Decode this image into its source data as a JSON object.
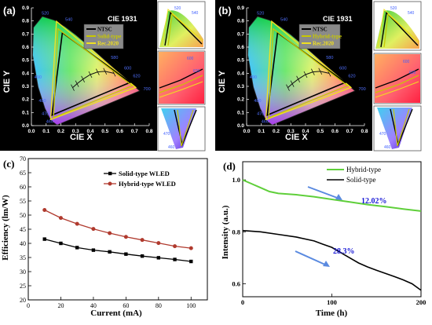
{
  "panels": {
    "a": {
      "label": "(a)",
      "title": "CIE 1931",
      "xlabel": "CIE X",
      "ylabel": "CIE Y",
      "legend": [
        "NTSC",
        "Solid-type",
        "Rec.2020"
      ],
      "legend_colors": [
        "#000000",
        "#c8c800",
        "#f0e020"
      ],
      "x_ticks": [
        "0.0",
        "0.1",
        "0.2",
        "0.3",
        "0.4",
        "0.5",
        "0.6",
        "0.7",
        "0.8"
      ],
      "y_ticks": [
        "0.0",
        "0.1",
        "0.2",
        "0.3",
        "0.4",
        "0.5",
        "0.6",
        "0.7",
        "0.8",
        "0.9"
      ],
      "wavelengths": [
        "520",
        "540",
        "560",
        "580",
        "600",
        "620",
        "700",
        "490",
        "480",
        "470",
        "460"
      ]
    },
    "b": {
      "label": "(b)",
      "title": "CIE 1931",
      "xlabel": "CIE X",
      "ylabel": "CIE Y",
      "legend": [
        "NTSC",
        "Hybrid-type",
        "Rec.2020"
      ],
      "legend_colors": [
        "#000000",
        "#c8c800",
        "#f0e020"
      ],
      "x_ticks": [
        "0.0",
        "0.1",
        "0.2",
        "0.3",
        "0.4",
        "0.5",
        "0.6",
        "0.7",
        "0.8"
      ],
      "y_ticks": [
        "0.0",
        "0.1",
        "0.2",
        "0.3",
        "0.4",
        "0.5",
        "0.6",
        "0.7",
        "0.8",
        "0.9"
      ],
      "wavelengths": [
        "520",
        "540",
        "560",
        "580",
        "600",
        "620",
        "700",
        "490",
        "480",
        "470",
        "460"
      ]
    }
  },
  "chart_data": [
    {
      "panel": "(c)",
      "type": "line",
      "xlabel": "Current (mA)",
      "ylabel": "Efficiency (lm/W)",
      "xlim": [
        0,
        110
      ],
      "ylim": [
        20,
        70
      ],
      "x_ticks": [
        "0",
        "20",
        "40",
        "60",
        "80",
        "100"
      ],
      "y_ticks": [
        "20",
        "25",
        "30",
        "35",
        "40",
        "45",
        "50",
        "55",
        "60",
        "65",
        "70"
      ],
      "legend_position": "top-right",
      "x": [
        10,
        20,
        30,
        40,
        50,
        60,
        70,
        80,
        90,
        100
      ],
      "series": [
        {
          "name": "Solid-type WLED",
          "color": "#000000",
          "marker": "square",
          "values": [
            41.5,
            40.0,
            38.5,
            37.6,
            37.0,
            36.2,
            35.5,
            34.9,
            34.3,
            33.6
          ]
        },
        {
          "name": "Hybrid-type WLED",
          "color": "#b03a2e",
          "marker": "circle",
          "values": [
            51.8,
            49.0,
            46.9,
            45.1,
            43.6,
            42.3,
            41.2,
            40.1,
            39.0,
            38.3
          ]
        }
      ]
    },
    {
      "panel": "(d)",
      "type": "line",
      "xlabel": "Time (h)",
      "ylabel": "Intensity (a.u.)",
      "xlim": [
        0,
        200
      ],
      "ylim": [
        0.55,
        1.07
      ],
      "x_ticks": [
        "0",
        "100",
        "200"
      ],
      "y_ticks": [
        "0.6",
        "0.8",
        "1.0"
      ],
      "legend_position": "top-right",
      "annotations": [
        "12.02%",
        "28.3%"
      ],
      "annotation_color": "#1b1bd6",
      "series": [
        {
          "name": "Hybrid-type",
          "color": "#5fcf3a",
          "x": [
            0,
            10,
            20,
            30,
            40,
            60,
            80,
            100,
            120,
            140,
            160,
            180,
            200
          ],
          "values": [
            1.0,
            0.985,
            0.97,
            0.955,
            0.948,
            0.943,
            0.935,
            0.925,
            0.915,
            0.905,
            0.897,
            0.888,
            0.88
          ]
        },
        {
          "name": "Solid-type",
          "color": "#000000",
          "x": [
            0,
            20,
            40,
            60,
            80,
            90,
            100,
            110,
            120,
            130,
            140,
            150,
            160,
            170,
            180,
            190,
            200
          ],
          "values": [
            0.805,
            0.8,
            0.79,
            0.78,
            0.765,
            0.752,
            0.74,
            0.72,
            0.7,
            0.68,
            0.665,
            0.652,
            0.64,
            0.628,
            0.615,
            0.6,
            0.575
          ]
        }
      ]
    }
  ]
}
